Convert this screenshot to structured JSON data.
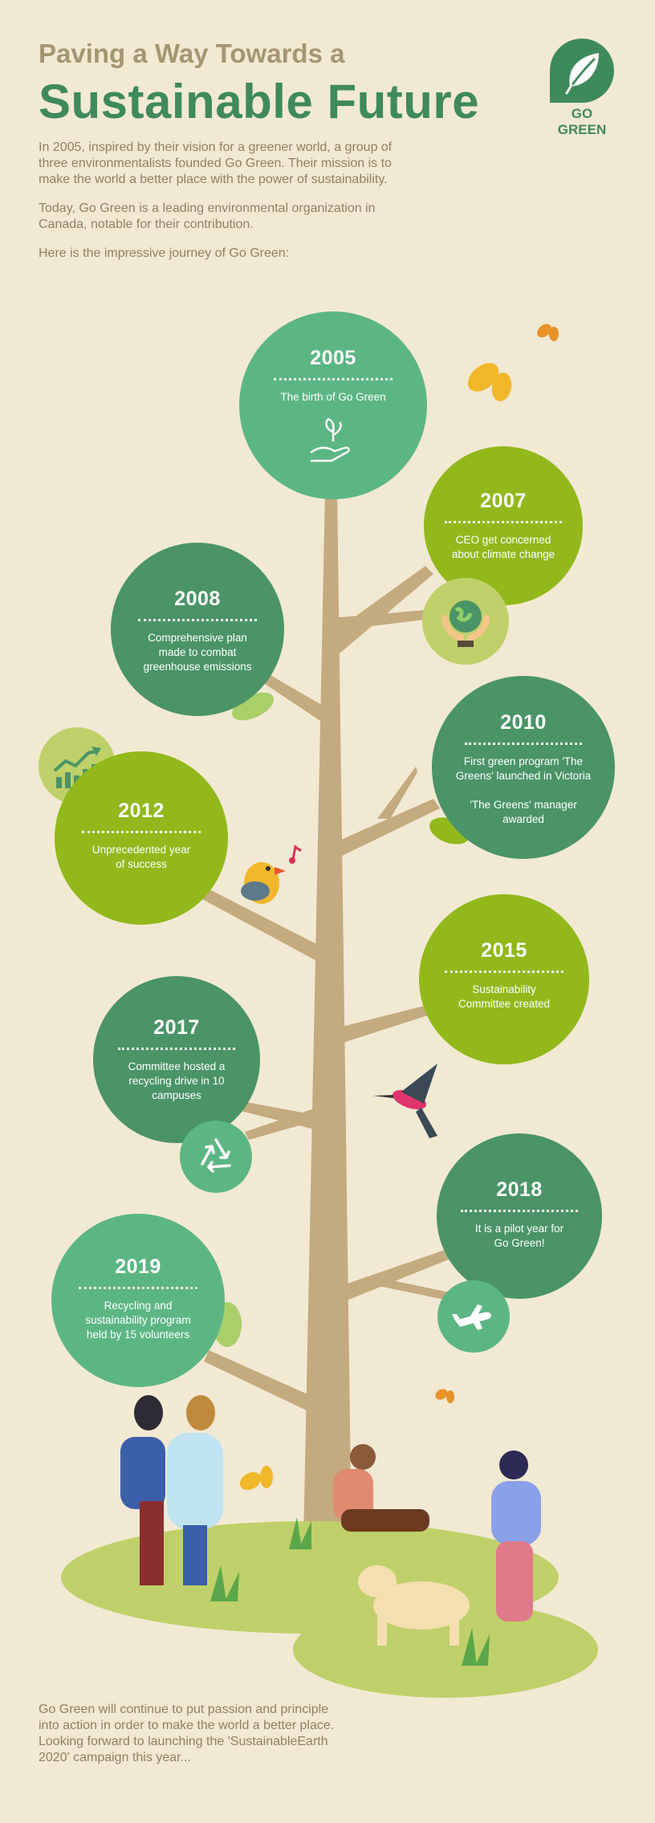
{
  "header": {
    "subtitle": "Paving a Way Towards a",
    "title": "Sustainable Future",
    "intro_1": "In 2005, inspired by their vision for a greener world, a group of three environmentalists founded Go Green. Their mission is to make the world a better place with the power of sustainability.",
    "intro_2": "Today, Go Green is a leading environmental organization in Canada, notable for their contribution.",
    "intro_3": "Here is the impressive journey of Go Green:"
  },
  "logo": {
    "label": "GO GREEN",
    "icon": "leaf-icon"
  },
  "milestones": [
    {
      "year": "2005",
      "line1": "The birth of Go Green",
      "line2": "",
      "line3": "",
      "line4": ""
    },
    {
      "year": "2007",
      "line1": "CEO get concerned",
      "line2": "about climate change",
      "line3": "",
      "line4": ""
    },
    {
      "year": "2008",
      "line1": "Comprehensive plan",
      "line2": "made to combat",
      "line3": "greenhouse emissions",
      "line4": ""
    },
    {
      "year": "2010",
      "line1": "First green program 'The",
      "line2": "Greens' launched in Victoria",
      "line3": "'The Greens' manager",
      "line4": "awarded"
    },
    {
      "year": "2012",
      "line1": "Unprecedented year",
      "line2": "of success",
      "line3": "",
      "line4": ""
    },
    {
      "year": "2015",
      "line1": "Sustainability",
      "line2": "Committee created",
      "line3": "",
      "line4": ""
    },
    {
      "year": "2017",
      "line1": "Committee hosted a",
      "line2": "recycling drive in 10",
      "line3": "campuses",
      "line4": ""
    },
    {
      "year": "2018",
      "line1": "It is a pilot year for",
      "line2": "Go Green!",
      "line3": "",
      "line4": ""
    },
    {
      "year": "2019",
      "line1": "Recycling and",
      "line2": "sustainability program",
      "line3": "held by 15 volunteers",
      "line4": ""
    }
  ],
  "icons": [
    "hand-sprout-icon",
    "globe-in-hands-icon",
    "growth-chart-icon",
    "recycle-icon",
    "airplane-icon"
  ],
  "colors": {
    "background": "#f2e9d3",
    "dark_green": "#4a9467",
    "medium_green": "#5cb684",
    "lime_green": "#92b81c",
    "title_green": "#3f8a5c",
    "trunk": "#c4aa7f"
  },
  "footer": {
    "text": "Go Green will continue to put passion and principle into action in order to make the world a better place. Looking forward to launching the 'SustainableEarth 2020' campaign this year..."
  }
}
